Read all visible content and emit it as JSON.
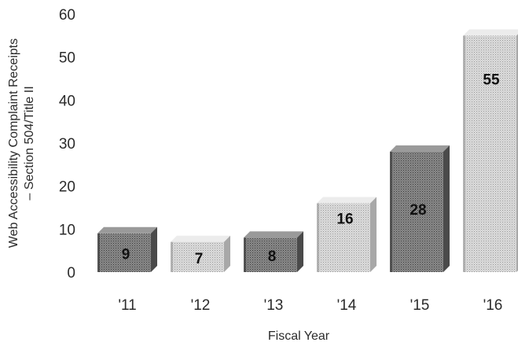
{
  "chart_data": {
    "type": "bar",
    "categories": [
      "'11",
      "'12",
      "'13",
      "'14",
      "'15",
      "'16"
    ],
    "values": [
      9,
      7,
      8,
      16,
      28,
      55
    ],
    "value_labels": [
      "9",
      "7",
      "8",
      "16",
      "28",
      "55"
    ],
    "title": "",
    "xlabel": "Fiscal Year",
    "ylabel_lines": [
      "Web Accessibility Complaint Receipts",
      "– Section 504/Title II"
    ],
    "ylim": [
      0,
      60
    ],
    "yticks": [
      "0",
      "10",
      "20",
      "30",
      "40",
      "50",
      "60"
    ],
    "grid": false,
    "legend": "none",
    "bar_colors": [
      "#7a7a7a",
      "#d4d4d4",
      "#7a7a7a",
      "#d4d4d4",
      "#7a7a7a",
      "#d4d4d4"
    ],
    "style": "3d-stippled"
  }
}
